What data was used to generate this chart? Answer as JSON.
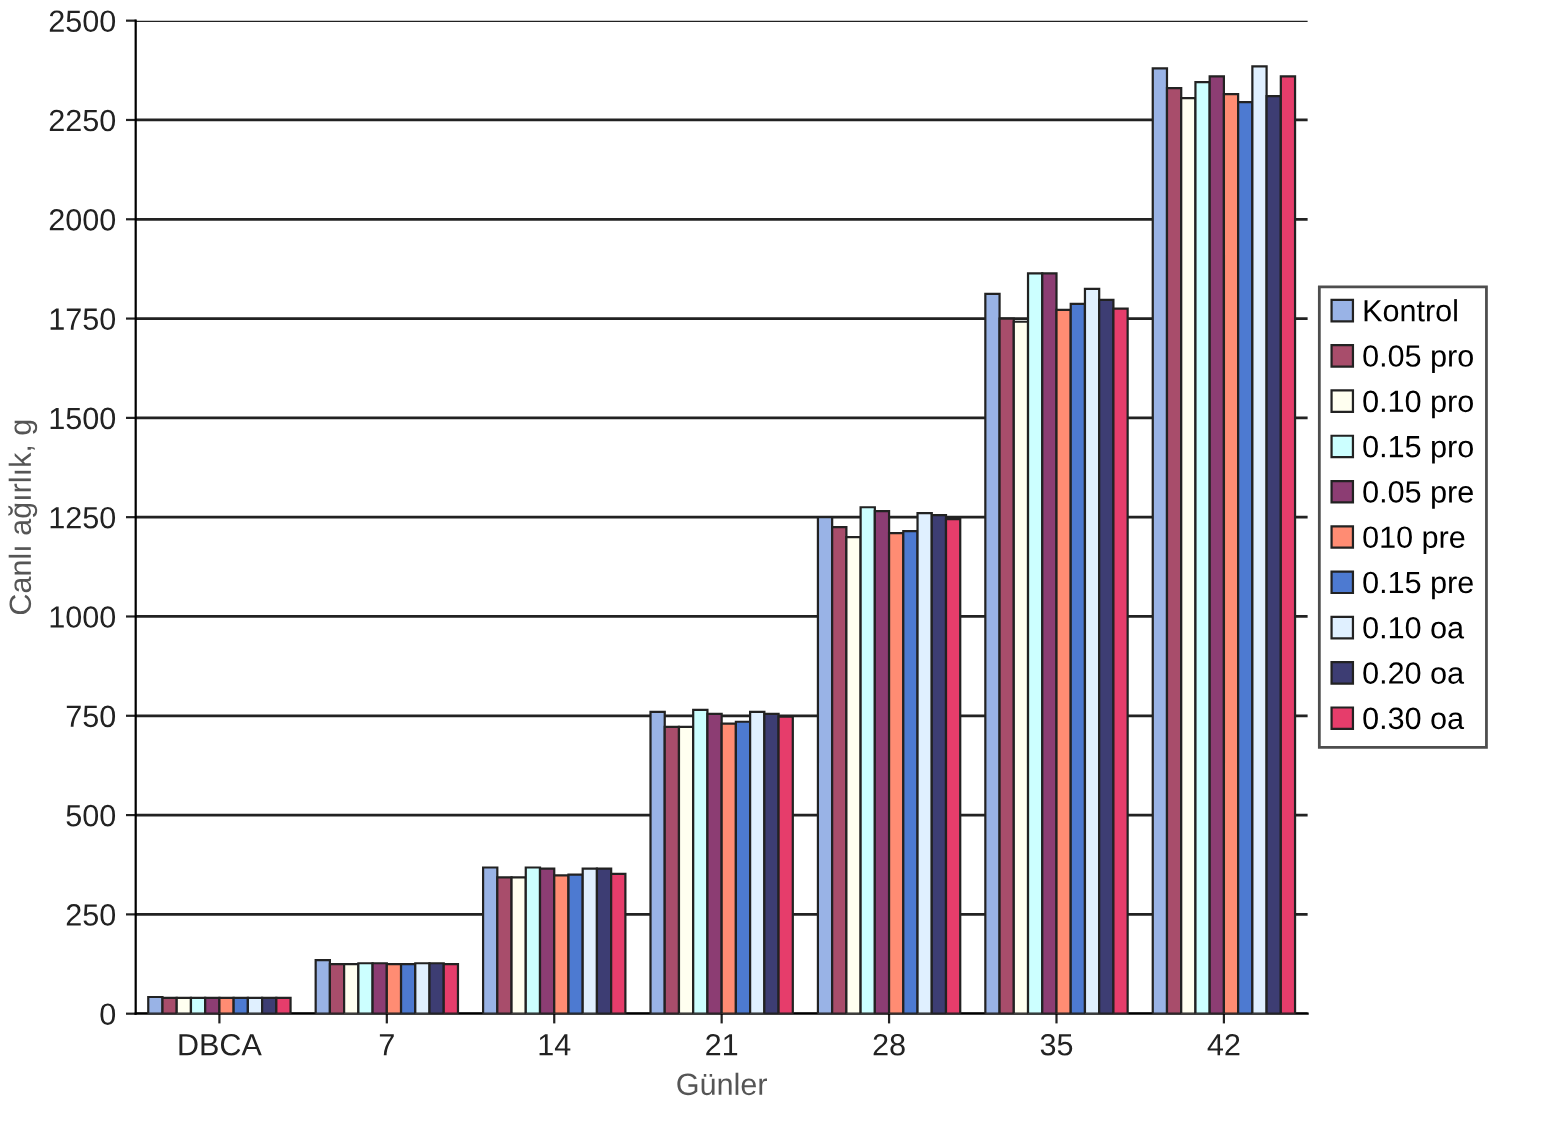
{
  "chart_data": {
    "type": "bar",
    "xlabel": "Günler",
    "ylabel": "Canlı ağırlık, g",
    "categories": [
      "DBCA",
      "7",
      "14",
      "21",
      "28",
      "35",
      "42"
    ],
    "series": [
      {
        "name": "Kontrol",
        "color": "#99b3e6",
        "values": [
          42,
          135,
          368,
          760,
          1250,
          1812,
          2380
        ]
      },
      {
        "name": "0.05 pro",
        "color": "#a84d6b",
        "values": [
          40,
          125,
          343,
          722,
          1225,
          1750,
          2330
        ]
      },
      {
        "name": "0.10 pro",
        "color": "#fffff0",
        "values": [
          40,
          125,
          343,
          722,
          1200,
          1742,
          2305
        ]
      },
      {
        "name": "0.15 pro",
        "color": "#ccffff",
        "values": [
          40,
          127,
          368,
          765,
          1275,
          1864,
          2345
        ]
      },
      {
        "name": "0.05 pre",
        "color": "#8c3d73",
        "values": [
          40,
          127,
          365,
          755,
          1265,
          1864,
          2360
        ]
      },
      {
        "name": "010 pre",
        "color": "#ff8c73",
        "values": [
          40,
          125,
          348,
          730,
          1210,
          1772,
          2315
        ]
      },
      {
        "name": "0.15 pre",
        "color": "#4d7ad1",
        "values": [
          40,
          125,
          350,
          735,
          1215,
          1787,
          2295
        ]
      },
      {
        "name": "0.10 oa",
        "color": "#e0f0ff",
        "values": [
          40,
          127,
          365,
          760,
          1260,
          1825,
          2385
        ]
      },
      {
        "name": "0.20 oa",
        "color": "#3d3d73",
        "values": [
          40,
          127,
          365,
          755,
          1255,
          1797,
          2310
        ]
      },
      {
        "name": "0.30 oa",
        "color": "#e63d6b",
        "values": [
          40,
          125,
          352,
          748,
          1245,
          1775,
          2360
        ]
      }
    ],
    "ylim": [
      0,
      2500
    ],
    "yticks": [
      0,
      250,
      500,
      750,
      1000,
      1250,
      1500,
      1750,
      2000,
      2250,
      2500
    ],
    "grid": "y",
    "legend": "right"
  }
}
